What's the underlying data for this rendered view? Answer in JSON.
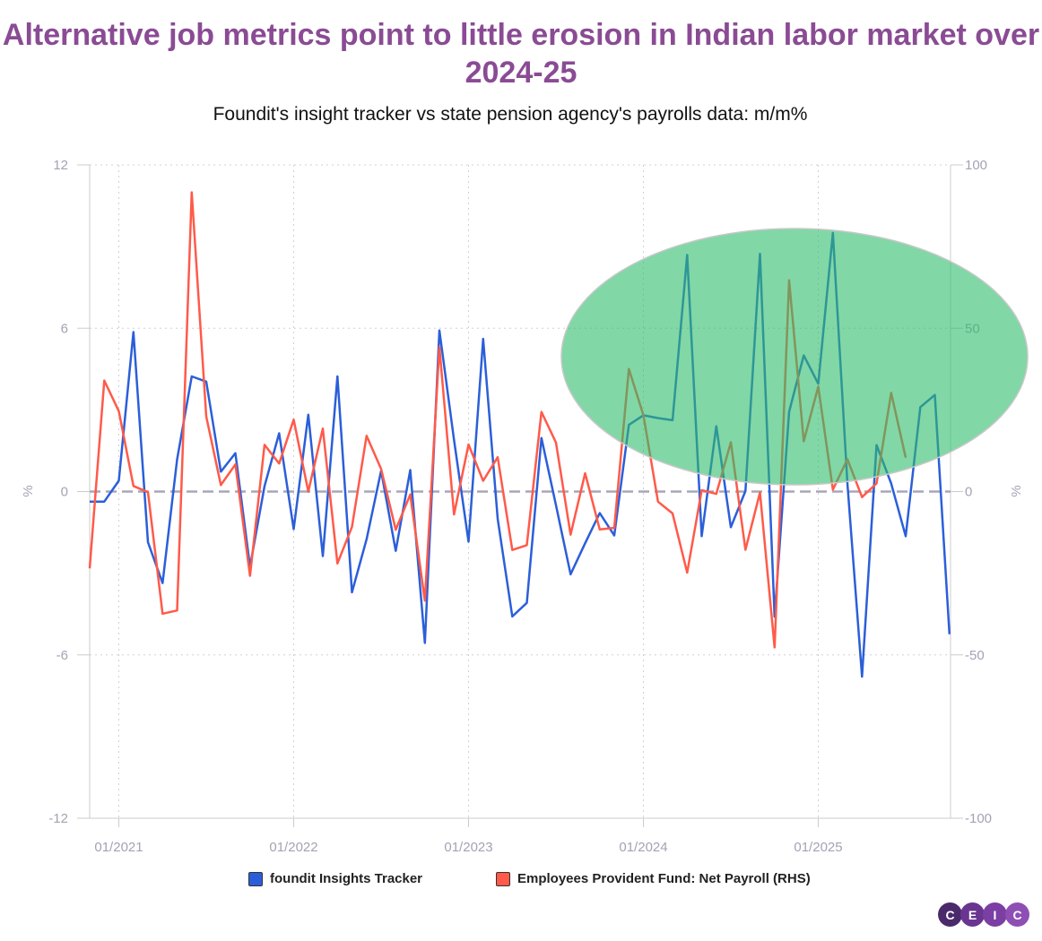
{
  "title": "Alternative job metrics point to little erosion in Indian labor market over 2024-25",
  "subtitle": "Foundit's insight tracker vs state pension agency's payrolls data: m/m%",
  "logo": [
    "C",
    "E",
    "I",
    "C"
  ],
  "colors": {
    "title": "#8a4b94",
    "series1": "#2b5fd9",
    "series2": "#ff5a4a",
    "highlight": "#2ebd6b",
    "zero_line": "#a8a6b8"
  },
  "chart_data": {
    "type": "line",
    "x_start": "11/2020",
    "x_frequency": "monthly",
    "x_tick_labels": [
      "01/2021",
      "01/2022",
      "01/2023",
      "01/2024",
      "01/2025"
    ],
    "ylabel": "%",
    "ylabel_right": "%",
    "ylim": [
      -12,
      12
    ],
    "yticks": [
      "12",
      "6",
      "0",
      "-6",
      "-12"
    ],
    "ylim_right": [
      -100,
      100
    ],
    "yticks_right": [
      "100",
      "50",
      "0",
      "-50",
      "-100"
    ],
    "grid": "dotted",
    "zero_line": "dashed",
    "legend_position": "bottom",
    "highlight": "ellipse around 2024-25 data",
    "series": [
      {
        "name": "foundit Insights Tracker",
        "axis": "left",
        "values": [
          -0.37,
          -0.37,
          0.4,
          5.86,
          -1.86,
          -3.36,
          1.18,
          4.23,
          4.04,
          0.73,
          1.41,
          -2.76,
          0.2,
          2.14,
          -1.38,
          2.82,
          -2.37,
          4.23,
          -3.7,
          -1.75,
          0.76,
          -2.18,
          0.79,
          -5.56,
          5.92,
          1.9,
          -1.84,
          5.61,
          -1.0,
          -4.59,
          -4.09,
          1.97,
          -0.5,
          -3.04,
          -1.9,
          -0.79,
          -1.61,
          2.45,
          2.8,
          2.7,
          2.62,
          8.69,
          -1.64,
          2.4,
          -1.31,
          0.02,
          8.73,
          -4.6,
          2.93,
          5.0,
          3.96,
          9.5,
          0.3,
          -6.8,
          1.71,
          0.3,
          -1.64,
          3.1,
          3.55,
          -5.24
        ]
      },
      {
        "name": "Employees Provident Fund: Net Payroll (RHS)",
        "axis": "right",
        "values": [
          -23.5,
          34,
          24.6,
          1.7,
          -0.2,
          -37.4,
          -36.4,
          91.6,
          23,
          2,
          8.3,
          -25.8,
          14.3,
          8.6,
          22,
          0,
          19.3,
          -22,
          -10.8,
          17.1,
          6.9,
          -11.7,
          -0.9,
          -33.4,
          44.2,
          -7,
          14.4,
          3.3,
          10.5,
          -17.9,
          -16.4,
          24.4,
          15,
          -13.2,
          5.6,
          -11.6,
          -11.1,
          37.5,
          23.4,
          -3.1,
          -6.7,
          -24.8,
          0.4,
          -0.7,
          15.1,
          -17.8,
          -0.3,
          -47.7,
          64.7,
          15.4,
          32.1,
          0.6,
          9.9,
          -1.7,
          2.5,
          30.2,
          10.4
        ]
      }
    ]
  }
}
